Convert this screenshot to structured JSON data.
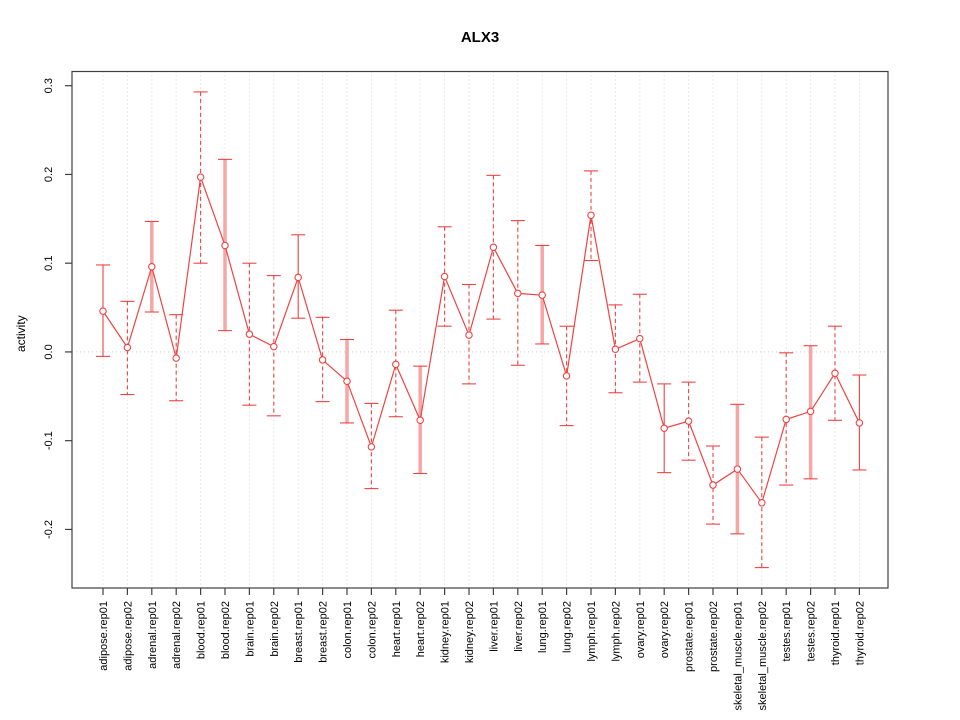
{
  "chart_data": {
    "type": "line",
    "title": "ALX3",
    "xlabel": "",
    "ylabel": "activity",
    "ylim": [
      -0.266,
      0.316
    ],
    "yticks": [
      -0.2,
      -0.1,
      0.0,
      0.1,
      0.2,
      0.3
    ],
    "ytick_labels": [
      "-0.2",
      "-0.1",
      "0.0",
      "0.1",
      "0.2",
      "0.3"
    ],
    "legend": "none",
    "grid": {
      "vertical_gridlines": "dotted",
      "zero_line": "dotted"
    },
    "categories": [
      "adipose.rep01",
      "adipose.rep02",
      "adrenal.rep01",
      "adrenal.rep02",
      "blood.rep01",
      "blood.rep02",
      "brain.rep01",
      "brain.rep02",
      "breast.rep01",
      "breast.rep02",
      "colon.rep01",
      "colon.rep02",
      "heart.rep01",
      "heart.rep02",
      "kidney.rep01",
      "kidney.rep02",
      "liver.rep01",
      "liver.rep02",
      "lung.rep01",
      "lung.rep02",
      "lymph.rep01",
      "lymph.rep02",
      "ovary.rep01",
      "ovary.rep02",
      "prostate.rep01",
      "prostate.rep02",
      "skeletal_muscle.rep01",
      "skeletal_muscle.rep02",
      "testes.rep01",
      "testes.rep02",
      "thyroid.rep01",
      "thyroid.rep02"
    ],
    "series": [
      {
        "name": "activity",
        "marker": "open-circle",
        "values": [
          0.046,
          0.005,
          0.096,
          -0.007,
          0.197,
          0.12,
          0.02,
          0.006,
          0.084,
          -0.009,
          -0.033,
          -0.107,
          -0.014,
          -0.077,
          0.085,
          0.019,
          0.118,
          0.066,
          0.064,
          -0.027,
          0.154,
          0.003,
          0.015,
          -0.086,
          -0.078,
          -0.15,
          -0.132,
          -0.17,
          -0.076,
          -0.067,
          -0.024,
          -0.08
        ],
        "err_high": [
          0.098,
          0.057,
          0.147,
          0.042,
          0.293,
          0.217,
          0.1,
          0.086,
          0.132,
          0.039,
          0.014,
          -0.058,
          0.047,
          -0.016,
          0.141,
          0.076,
          0.199,
          0.148,
          0.12,
          0.029,
          0.204,
          0.053,
          0.065,
          -0.036,
          -0.034,
          -0.106,
          -0.059,
          -0.096,
          -0.001,
          0.007,
          0.029,
          -0.026
        ],
        "err_low": [
          -0.005,
          -0.048,
          0.045,
          -0.055,
          0.1,
          0.024,
          -0.06,
          -0.072,
          0.038,
          -0.056,
          -0.08,
          -0.154,
          -0.073,
          -0.137,
          0.029,
          -0.036,
          0.037,
          -0.015,
          0.009,
          -0.083,
          0.103,
          -0.046,
          -0.034,
          -0.136,
          -0.122,
          -0.194,
          -0.205,
          -0.243,
          -0.15,
          -0.143,
          -0.077,
          -0.133
        ],
        "bar_styles": [
          "solid",
          "dashed",
          "thick",
          "dashed",
          "dashed",
          "thick",
          "dashed",
          "dashed",
          "solid",
          "dashed",
          "thick",
          "dashed",
          "dashed",
          "thick",
          "dashed",
          "dashed",
          "dashed",
          "dashed",
          "thick",
          "dashed",
          "dashed",
          "dashed",
          "dashed",
          "solid",
          "dashed",
          "dashed",
          "thick",
          "dashed",
          "dashed",
          "thick",
          "dashed",
          "solid"
        ]
      }
    ],
    "colors": {
      "series": "#ef4343",
      "errbar_thick": "#f7a6a6",
      "grid": "#d6d6d6",
      "zero_line": "#cfcfcf",
      "axis": "#3f3f3f",
      "text": "#000000"
    }
  }
}
